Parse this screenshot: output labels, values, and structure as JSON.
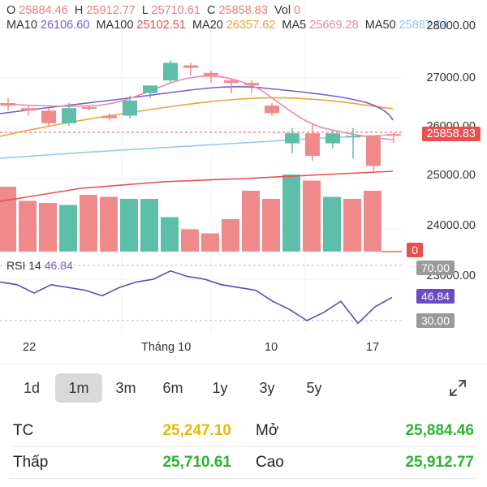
{
  "header": {
    "o_label": "O",
    "o": "25884.46",
    "h_label": "H",
    "h": "25912.77",
    "l_label": "L",
    "l": "25710.61",
    "c_label": "C",
    "c": "25858.83",
    "vol_label": "Vol",
    "vol": "0"
  },
  "ma": [
    {
      "label": "MA10",
      "value": "26106.60",
      "color": "#7a5cc8"
    },
    {
      "label": "MA100",
      "value": "25102.51",
      "color": "#e84f4f"
    },
    {
      "label": "MA20",
      "value": "26357.62",
      "color": "#e8a33c"
    },
    {
      "label": "MA5",
      "value": "25669.28",
      "color": "#e888b0"
    },
    {
      "label": "MA50",
      "value": "25887.04",
      "color": "#8ccbea"
    }
  ],
  "rsi": {
    "label": "RSI 14",
    "value": "46.84",
    "upper": "70.00",
    "lower": "30.00",
    "current_tag": "46.84"
  },
  "price_axis": [
    "28000.00",
    "27000.00",
    "26000.00",
    "25000.00",
    "24000.00",
    "23000.00"
  ],
  "current_price_tag": "25858.83",
  "volume_tag": "0",
  "dates": [
    "22",
    "Tháng 10",
    "10",
    "17"
  ],
  "ranges": [
    "1d",
    "1m",
    "3m",
    "6m",
    "1y",
    "3y",
    "5y"
  ],
  "active_range": "1m",
  "stats": {
    "tc_label": "TC",
    "tc": "25,247.10",
    "mo_label": "Mở",
    "mo": "25,884.46",
    "thap_label": "Thấp",
    "thap": "25,710.61",
    "cao_label": "Cao",
    "cao": "25,912.77"
  },
  "colors": {
    "up": "#5dbfaa",
    "down": "#f08a8a",
    "ref": "#e8b800",
    "gain": "#2bb52b"
  },
  "chart_data": {
    "type": "candlestick",
    "candles": [
      {
        "o": 26500,
        "h": 26600,
        "l": 26350,
        "c": 26450,
        "dir": "down"
      },
      {
        "o": 26350,
        "h": 26450,
        "l": 26250,
        "c": 26400,
        "dir": "down"
      },
      {
        "o": 26350,
        "h": 26400,
        "l": 26050,
        "c": 26100,
        "dir": "down"
      },
      {
        "o": 26100,
        "h": 26500,
        "l": 26050,
        "c": 26400,
        "dir": "up"
      },
      {
        "o": 26400,
        "h": 26450,
        "l": 26350,
        "c": 26420,
        "dir": "down"
      },
      {
        "o": 26200,
        "h": 26300,
        "l": 26150,
        "c": 26250,
        "dir": "down"
      },
      {
        "o": 26250,
        "h": 26650,
        "l": 26200,
        "c": 26550,
        "dir": "up"
      },
      {
        "o": 26700,
        "h": 26850,
        "l": 26600,
        "c": 26850,
        "dir": "up"
      },
      {
        "o": 26950,
        "h": 27350,
        "l": 26900,
        "c": 27300,
        "dir": "up"
      },
      {
        "o": 27250,
        "h": 27300,
        "l": 27050,
        "c": 27200,
        "dir": "down"
      },
      {
        "o": 27050,
        "h": 27150,
        "l": 26900,
        "c": 27100,
        "dir": "down"
      },
      {
        "o": 26950,
        "h": 27000,
        "l": 26700,
        "c": 26900,
        "dir": "down"
      },
      {
        "o": 26900,
        "h": 26950,
        "l": 26700,
        "c": 26850,
        "dir": "down"
      },
      {
        "o": 26450,
        "h": 26500,
        "l": 26250,
        "c": 26300,
        "dir": "down"
      },
      {
        "o": 25700,
        "h": 26000,
        "l": 25500,
        "c": 25900,
        "dir": "up"
      },
      {
        "o": 25900,
        "h": 26100,
        "l": 25350,
        "c": 25450,
        "dir": "down"
      },
      {
        "o": 25700,
        "h": 25950,
        "l": 25600,
        "c": 25900,
        "dir": "up"
      },
      {
        "o": 25850,
        "h": 26000,
        "l": 25400,
        "c": 25850,
        "dir": "up"
      },
      {
        "o": 25850,
        "h": 25850,
        "l": 25150,
        "c": 25250,
        "dir": "down"
      },
      {
        "o": 25884.46,
        "h": 25912.77,
        "l": 25710.61,
        "c": 25858.83,
        "dir": "down"
      }
    ],
    "volumes": [
      {
        "v": 1.6,
        "dir": "down"
      },
      {
        "v": 1.25,
        "dir": "down"
      },
      {
        "v": 1.2,
        "dir": "down"
      },
      {
        "v": 1.15,
        "dir": "up"
      },
      {
        "v": 1.4,
        "dir": "down"
      },
      {
        "v": 1.35,
        "dir": "down"
      },
      {
        "v": 1.3,
        "dir": "up"
      },
      {
        "v": 1.3,
        "dir": "up"
      },
      {
        "v": 0.85,
        "dir": "up"
      },
      {
        "v": 0.55,
        "dir": "down"
      },
      {
        "v": 0.45,
        "dir": "down"
      },
      {
        "v": 0.8,
        "dir": "down"
      },
      {
        "v": 1.5,
        "dir": "down"
      },
      {
        "v": 1.3,
        "dir": "down"
      },
      {
        "v": 1.9,
        "dir": "up"
      },
      {
        "v": 1.75,
        "dir": "down"
      },
      {
        "v": 1.35,
        "dir": "up"
      },
      {
        "v": 1.3,
        "dir": "down"
      },
      {
        "v": 1.5,
        "dir": "down"
      },
      {
        "v": 0,
        "dir": "down"
      }
    ],
    "rsi": [
      58,
      56,
      50,
      56,
      54,
      52,
      48,
      54,
      58,
      60,
      66,
      62,
      60,
      56,
      54,
      52,
      44,
      38,
      30,
      36,
      44,
      28,
      40,
      46.84
    ],
    "ylim": [
      23000,
      28000
    ]
  }
}
